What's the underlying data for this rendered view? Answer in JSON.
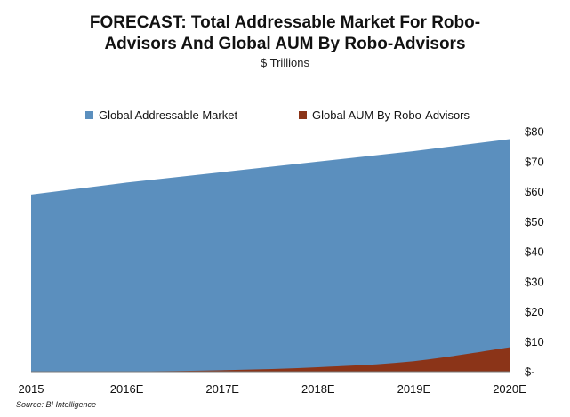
{
  "title_line1": "FORECAST: Total Addressable Market For Robo-",
  "title_line2": "Advisors And Global AUM By Robo-Advisors",
  "subtitle": "$ Trillions",
  "brand": "BI Intelligence",
  "source": "Source: BI Intelligence",
  "chart_data": {
    "type": "area",
    "title": "FORECAST: Total Addressable Market For Robo-Advisors And Global AUM By Robo-Advisors",
    "subtitle": "$ Trillions",
    "categories": [
      "2015",
      "2016E",
      "2017E",
      "2018E",
      "2019E",
      "2020E"
    ],
    "series": [
      {
        "name": "Global Addressable Market",
        "color": "#5b8fbe",
        "values": [
          59,
          63,
          66.5,
          70,
          73.5,
          77.5
        ]
      },
      {
        "name": "Global AUM By Robo-Advisors",
        "color": "#8b3418",
        "values": [
          0.02,
          0.1,
          0.5,
          1.5,
          3.5,
          8.1
        ]
      }
    ],
    "y_ticks": [
      "$-",
      "$10",
      "$20",
      "$30",
      "$40",
      "$50",
      "$60",
      "$70",
      "$80"
    ],
    "ylim": [
      0,
      80
    ],
    "y_axis_side": "right",
    "grid": false,
    "legend_position": "top"
  }
}
